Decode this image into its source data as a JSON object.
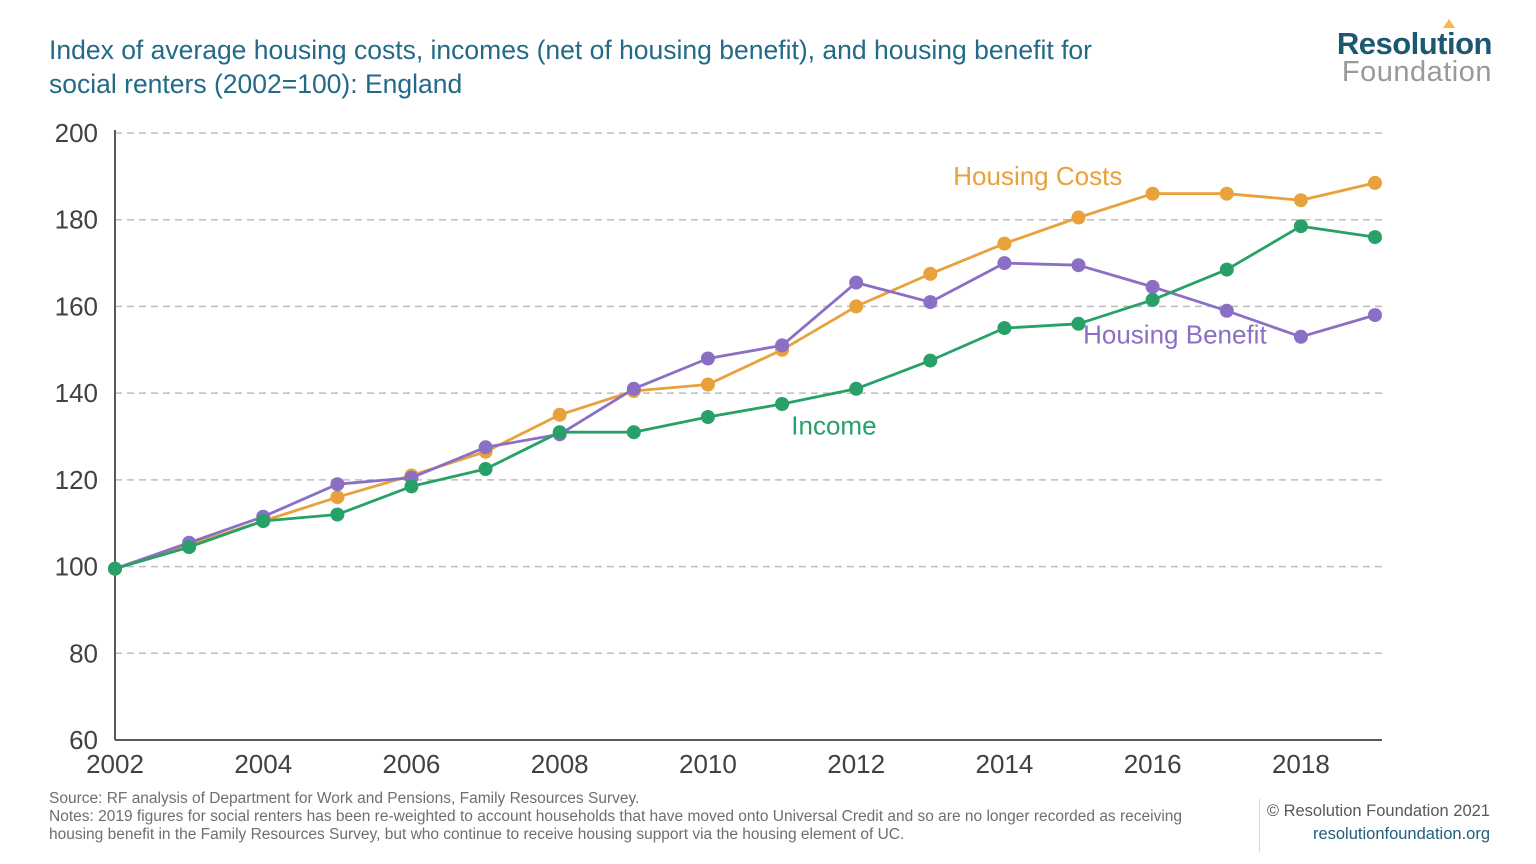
{
  "header": {
    "title_lines": [
      "Index of average housing costs, incomes (net of housing benefit), and housing benefit for",
      "social renters (2002=100): England"
    ],
    "logo": {
      "word1": "Resolution",
      "word2": "Foundation"
    }
  },
  "chart_data": {
    "type": "line",
    "x": [
      2002,
      2003,
      2004,
      2005,
      2006,
      2007,
      2008,
      2009,
      2010,
      2011,
      2012,
      2013,
      2014,
      2015,
      2016,
      2017,
      2018,
      2019
    ],
    "series": [
      {
        "name": "Housing Costs",
        "color": "#E9A13B",
        "values": [
          99.5,
          105,
          110.5,
          116,
          121,
          126.5,
          135,
          140.5,
          142,
          150,
          160,
          167.5,
          174.5,
          180.5,
          186,
          186,
          184.5,
          188.5
        ]
      },
      {
        "name": "Housing Benefit",
        "color": "#8B6FC5",
        "values": [
          99.5,
          105.5,
          111.5,
          119,
          120.5,
          127.5,
          130.5,
          141,
          148,
          151,
          165.5,
          161,
          170,
          169.5,
          164.5,
          159,
          153,
          158
        ]
      },
      {
        "name": "Income",
        "color": "#27A168",
        "values": [
          99.5,
          104.5,
          110.5,
          112,
          118.5,
          122.5,
          131,
          131,
          134.5,
          137.5,
          141,
          147.5,
          155,
          156,
          161.5,
          168.5,
          178.5,
          176
        ]
      }
    ],
    "ylim": [
      60,
      200
    ],
    "ytick_step": 20,
    "xticks": [
      2002,
      2004,
      2006,
      2008,
      2010,
      2012,
      2014,
      2016,
      2018
    ],
    "grid": "horizontal-dashed",
    "legend_position": "inline-annotations",
    "annotations": [
      {
        "text": "Housing Costs",
        "color": "#E9A13B",
        "x": 2014.45,
        "y": 188
      },
      {
        "text": "Housing Benefit",
        "color": "#8B6FC5",
        "x": 2016.3,
        "y": 151.5
      },
      {
        "text": "Income",
        "color": "#27A168",
        "x": 2011.7,
        "y": 130.5
      }
    ]
  },
  "footer": {
    "source": "Source: RF analysis of Department for Work and Pensions, Family Resources Survey.",
    "notes": "Notes: 2019 figures for social renters has been re-weighted to account households that have moved onto Universal Credit and so are no longer recorded as receiving housing benefit in the Family Resources Survey, but who continue to receive housing support via the housing element of UC.",
    "copyright": "© Resolution Foundation 2021",
    "website": "resolutionfoundation.org"
  },
  "colors": {
    "title": "#236A89",
    "axis_text": "#414042",
    "grid": "#BBBDBF",
    "axis_line": "#58595B",
    "footer_text": "#6D6E71",
    "website": "#20607C",
    "logo_word1": "#1C5872",
    "logo_word2": "#97999B",
    "logo_accent": "#F6B940"
  }
}
